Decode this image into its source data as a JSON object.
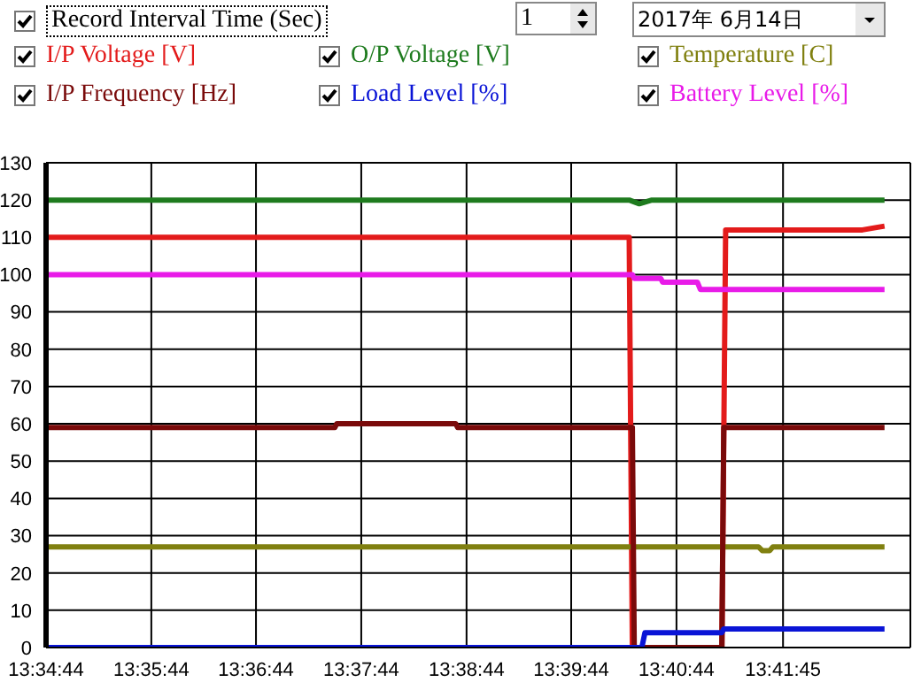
{
  "chart_data": {
    "type": "line",
    "legend": "top",
    "grid": true,
    "marker": "none",
    "line_style": "solid",
    "annotations": [
      "Record Interval Time (Sec)",
      "1",
      "2017年 6月14日"
    ],
    "xlim": [
      13.5789,
      13.716
    ],
    "ylim": [
      0,
      130
    ],
    "xticks": [
      {
        "value": 13.5789,
        "label": "13:34:44"
      },
      {
        "value": 13.5956,
        "label": "13:35:44"
      },
      {
        "value": 13.6122,
        "label": "13:36:44"
      },
      {
        "value": 13.6289,
        "label": "13:37:44"
      },
      {
        "value": 13.6456,
        "label": "13:38:44"
      },
      {
        "value": 13.6622,
        "label": "13:39:44"
      },
      {
        "value": 13.6789,
        "label": "13:40:44"
      },
      {
        "value": 13.6958,
        "label": "13:41:45"
      }
    ],
    "yticks": [
      0,
      10,
      20,
      30,
      40,
      50,
      60,
      70,
      80,
      90,
      100,
      110,
      120,
      130
    ],
    "series": [
      {
        "name": "I/P Voltage [V]",
        "color": "#e31b1b",
        "x": [
          13.5789,
          13.6714,
          13.6719,
          13.6861,
          13.6867,
          13.7084,
          13.7119
        ],
        "values": [
          110,
          110,
          0,
          0,
          112,
          112,
          113
        ]
      },
      {
        "name": "O/P Voltage [V]",
        "color": "#1e7b1e",
        "x": [
          13.5789,
          13.6714,
          13.673,
          13.675,
          13.7119
        ],
        "values": [
          120,
          120,
          119,
          120,
          120
        ]
      },
      {
        "name": "Temperature [C]",
        "color": "#808010",
        "x": [
          13.5789,
          13.6919,
          13.6925,
          13.6937,
          13.6942,
          13.7119
        ],
        "values": [
          27,
          27,
          26,
          26,
          27,
          27
        ]
      },
      {
        "name": "I/P Frequency [Hz]",
        "color": "#7a0a0a",
        "x": [
          13.5789,
          13.6247,
          13.625,
          13.6439,
          13.6442,
          13.6719,
          13.6722,
          13.6861,
          13.6864,
          13.7119
        ],
        "values": [
          59,
          59,
          60,
          60,
          59,
          59,
          0,
          0,
          59,
          59
        ]
      },
      {
        "name": "Load Level [%]",
        "color": "#0a14d6",
        "x": [
          13.5789,
          13.6734,
          13.6739,
          13.6861,
          13.6864,
          13.7119
        ],
        "values": [
          0,
          0,
          4,
          4,
          5,
          5
        ]
      },
      {
        "name": "Battery Level [%]",
        "color": "#e81be8",
        "x": [
          13.5789,
          13.6719,
          13.6722,
          13.6764,
          13.6767,
          13.6822,
          13.6827,
          13.7119
        ],
        "values": [
          100,
          100,
          99,
          99,
          98,
          98,
          96,
          96
        ]
      }
    ]
  }
}
